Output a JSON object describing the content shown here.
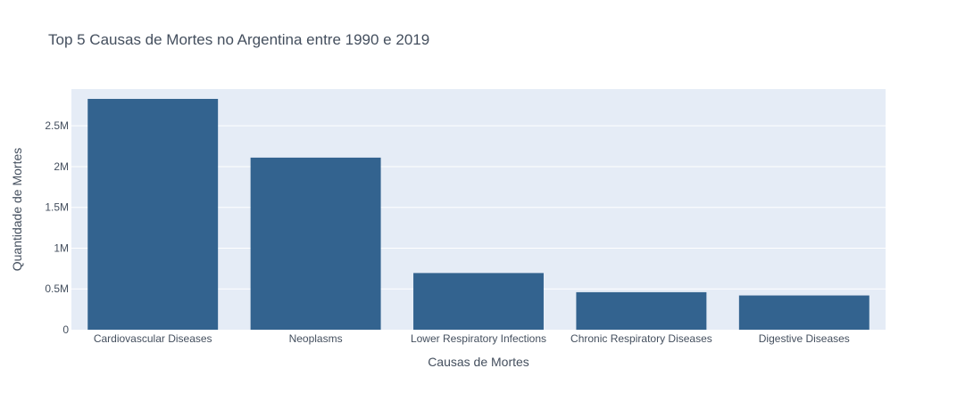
{
  "chart_data": {
    "type": "bar",
    "title": "Top 5 Causas de Mortes no Argentina entre 1990 e 2019",
    "xlabel": "Causas de Mortes",
    "ylabel": "Quantidade de Mortes",
    "categories": [
      "Cardiovascular Diseases",
      "Neoplasms",
      "Lower Respiratory Infections",
      "Chronic Respiratory Diseases",
      "Digestive Diseases"
    ],
    "values": [
      2830000,
      2110000,
      695000,
      460000,
      420000
    ],
    "ylim": [
      0,
      2950000
    ],
    "yticks": [
      0,
      500000,
      1000000,
      1500000,
      2000000,
      2500000
    ],
    "ytick_labels": [
      "0",
      "0.5M",
      "1M",
      "1.5M",
      "2M",
      "2.5M"
    ],
    "bar_color": "#33638f",
    "plot_bg": "#e5ecf6",
    "grid": true
  }
}
